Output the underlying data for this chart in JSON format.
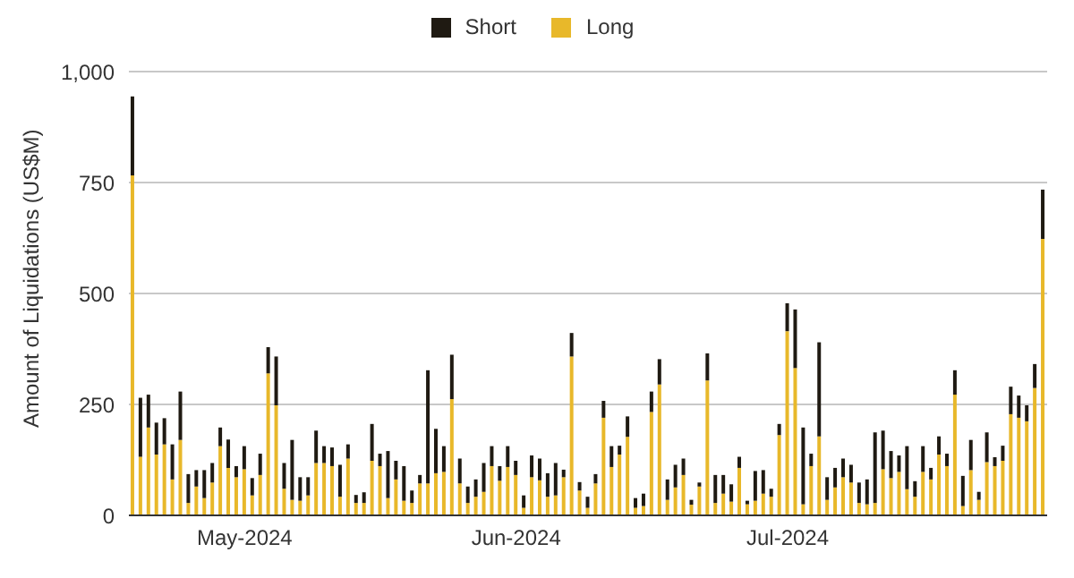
{
  "chart_data": {
    "type": "bar",
    "stacked": true,
    "ylabel": "Amount of Liquidations (US$M)",
    "ylim": [
      0,
      1000
    ],
    "yticks": [
      0,
      {
        "value": 250,
        "label": "250"
      },
      {
        "value": 500,
        "label": "500"
      },
      {
        "value": 750,
        "label": "750"
      },
      {
        "value": 1000,
        "label": "1,000"
      }
    ],
    "grid": "y",
    "legend": "top",
    "categories": [
      null,
      null,
      null,
      null,
      null,
      null,
      null,
      null,
      null,
      null,
      null,
      null,
      null,
      null,
      "May-2024",
      null,
      null,
      null,
      null,
      null,
      null,
      null,
      null,
      null,
      null,
      null,
      null,
      null,
      null,
      null,
      null,
      null,
      null,
      null,
      null,
      null,
      null,
      null,
      null,
      null,
      null,
      null,
      null,
      null,
      null,
      null,
      null,
      null,
      "Jun-2024",
      null,
      null,
      null,
      null,
      null,
      null,
      null,
      null,
      null,
      null,
      null,
      null,
      null,
      null,
      null,
      null,
      null,
      null,
      null,
      null,
      null,
      null,
      null,
      null,
      null,
      null,
      null,
      null,
      null,
      null,
      null,
      null,
      null,
      "Jul-2024",
      null,
      null,
      null,
      null,
      null,
      null,
      null,
      null,
      null,
      null,
      null,
      null,
      null,
      null,
      null,
      null,
      null,
      null,
      null,
      null,
      null,
      null,
      null,
      null,
      null,
      null,
      null,
      null,
      null,
      null,
      null,
      null
    ],
    "series": [
      {
        "name": "Long",
        "color": "#e8b82a",
        "values": [
          766,
          132,
          198,
          137,
          160,
          81,
          170,
          28,
          65,
          39,
          74,
          156,
          107,
          86,
          104,
          45,
          91,
          320,
          248,
          60,
          35,
          33,
          45,
          118,
          118,
          111,
          42,
          128,
          28,
          28,
          123,
          111,
          39,
          81,
          33,
          28,
          72,
          72,
          95,
          98,
          262,
          72,
          28,
          42,
          53,
          111,
          78,
          109,
          91,
          17,
          86,
          79,
          42,
          45,
          86,
          358,
          56,
          17,
          72,
          220,
          109,
          137,
          177,
          17,
          21,
          233,
          295,
          35,
          63,
          91,
          24,
          65,
          304,
          28,
          49,
          31,
          107,
          25,
          33,
          49,
          42,
          181,
          415,
          332,
          25,
          111,
          178,
          35,
          63,
          86,
          74,
          28,
          25,
          28,
          104,
          84,
          98,
          59,
          42,
          98,
          81,
          137,
          111,
          272,
          21,
          102,
          35,
          120,
          111,
          123,
          228,
          220,
          212,
          287,
          623
        ]
      },
      {
        "name": "Short",
        "color": "#1f1a12",
        "values": [
          178,
          133,
          74,
          72,
          59,
          79,
          109,
          65,
          37,
          63,
          44,
          42,
          64,
          25,
          52,
          39,
          48,
          59,
          110,
          58,
          135,
          53,
          41,
          73,
          38,
          42,
          72,
          32,
          18,
          24,
          83,
          28,
          106,
          42,
          78,
          28,
          19,
          255,
          100,
          58,
          100,
          56,
          37,
          39,
          65,
          45,
          33,
          47,
          32,
          28,
          49,
          49,
          53,
          73,
          17,
          53,
          19,
          25,
          21,
          38,
          47,
          20,
          46,
          22,
          28,
          46,
          57,
          46,
          51,
          37,
          11,
          9,
          61,
          63,
          42,
          39,
          25,
          8,
          67,
          53,
          18,
          25,
          63,
          132,
          173,
          28,
          212,
          51,
          44,
          42,
          40,
          46,
          56,
          159,
          87,
          61,
          37,
          97,
          35,
          58,
          26,
          41,
          28,
          55,
          68,
          68,
          18,
          67,
          20,
          34,
          62,
          50,
          36,
          54,
          111
        ]
      }
    ]
  }
}
